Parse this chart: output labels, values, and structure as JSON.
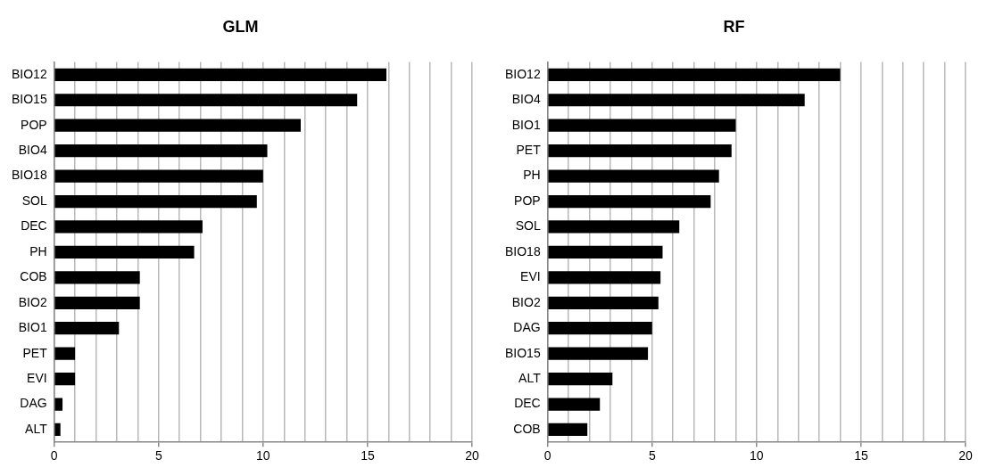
{
  "chart_data": [
    {
      "type": "bar",
      "orientation": "horizontal",
      "title": "GLM",
      "categories": [
        "BIO12",
        "BIO15",
        "POP",
        "BIO4",
        "BIO18",
        "SOL",
        "DEC",
        "PH",
        "COB",
        "BIO2",
        "BIO1",
        "PET",
        "EVI",
        "DAG",
        "ALT"
      ],
      "values": [
        15.9,
        14.5,
        11.8,
        10.2,
        10.0,
        9.7,
        7.1,
        6.7,
        4.1,
        4.1,
        3.1,
        1.0,
        1.0,
        0.4,
        0.3
      ],
      "color": "#000000",
      "xlim": [
        0,
        20
      ],
      "xticks": [
        0,
        {
          "value": 1,
          "label": null
        },
        {
          "value": 2,
          "label": null
        },
        {
          "value": 3,
          "label": null
        },
        {
          "value": 4,
          "label": null
        },
        5,
        {
          "value": 6,
          "label": null
        },
        {
          "value": 7,
          "label": null
        },
        {
          "value": 8,
          "label": null
        },
        {
          "value": 9,
          "label": null
        },
        10,
        {
          "value": 11,
          "label": null
        },
        {
          "value": 12,
          "label": null
        },
        {
          "value": 13,
          "label": null
        },
        {
          "value": 14,
          "label": null
        },
        15,
        {
          "value": 16,
          "label": null
        },
        {
          "value": 17,
          "label": null
        },
        {
          "value": 18,
          "label": null
        },
        {
          "value": 19,
          "label": null
        },
        20
      ],
      "grid": "x",
      "legend": false
    },
    {
      "type": "bar",
      "orientation": "horizontal",
      "title": "RF",
      "categories": [
        "BIO12",
        "BIO4",
        "BIO1",
        "PET",
        "PH",
        "POP",
        "SOL",
        "BIO18",
        "EVI",
        "BIO2",
        "DAG",
        "BIO15",
        "ALT",
        "DEC",
        "COB"
      ],
      "values": [
        14.0,
        12.3,
        9.0,
        8.8,
        8.2,
        7.8,
        6.3,
        5.5,
        5.4,
        5.3,
        5.0,
        4.8,
        3.1,
        2.5,
        1.9
      ],
      "color": "#000000",
      "xlim": [
        0,
        20
      ],
      "xticks": [
        0,
        {
          "value": 1,
          "label": null
        },
        {
          "value": 2,
          "label": null
        },
        {
          "value": 3,
          "label": null
        },
        {
          "value": 4,
          "label": null
        },
        5,
        {
          "value": 6,
          "label": null
        },
        {
          "value": 7,
          "label": null
        },
        {
          "value": 8,
          "label": null
        },
        {
          "value": 9,
          "label": null
        },
        10,
        {
          "value": 11,
          "label": null
        },
        {
          "value": 12,
          "label": null
        },
        {
          "value": 13,
          "label": null
        },
        {
          "value": 14,
          "label": null
        },
        15,
        {
          "value": 16,
          "label": null
        },
        {
          "value": 17,
          "label": null
        },
        {
          "value": 18,
          "label": null
        },
        {
          "value": 19,
          "label": null
        },
        20
      ],
      "grid": "x",
      "legend": false
    }
  ]
}
